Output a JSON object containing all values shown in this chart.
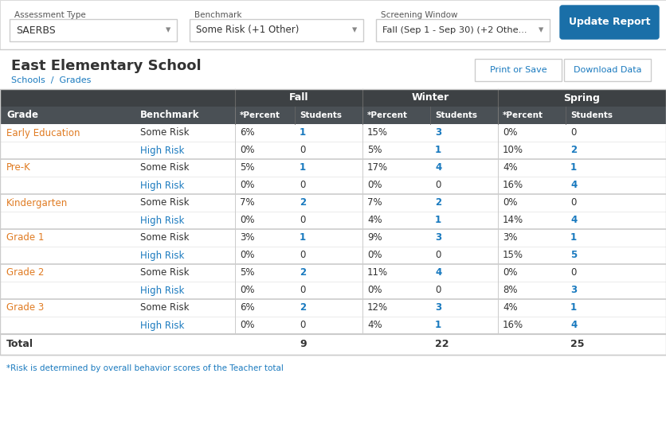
{
  "title": "East Elementary School",
  "breadcrumb": "Schools  /  Grades",
  "assessment_type_label": "Assessment Type",
  "assessment_type_value": "SAERBS",
  "benchmark_label": "Benchmark",
  "benchmark_value": "Some Risk (+1 Other)",
  "screening_window_label": "Screening Window",
  "screening_window_value": "Fall (Sep 1 - Sep 30) (+2 Othe...",
  "update_button": "Update Report",
  "print_button": "Print or Save",
  "download_button": "Download Data",
  "col_headers_top": [
    "",
    "",
    "Fall",
    "",
    "Winter",
    "",
    "Spring",
    ""
  ],
  "col_headers_sub": [
    "Grade",
    "Benchmark",
    "*Percent",
    "Students",
    "*Percent",
    "Students",
    "*Percent",
    "Students"
  ],
  "footnote": "*Risk is determined by overall behavior scores of the Teacher total",
  "rows": [
    {
      "grade": "Early Education",
      "benchmark": "Some Risk",
      "fall_pct": "6%",
      "fall_stu": "1",
      "fall_stu_blue": true,
      "win_pct": "15%",
      "win_stu": "3",
      "win_stu_blue": true,
      "spr_pct": "0%",
      "spr_stu": "0",
      "spr_stu_blue": false
    },
    {
      "grade": "",
      "benchmark": "High Risk",
      "fall_pct": "0%",
      "fall_stu": "0",
      "fall_stu_blue": false,
      "win_pct": "5%",
      "win_stu": "1",
      "win_stu_blue": true,
      "spr_pct": "10%",
      "spr_stu": "2",
      "spr_stu_blue": true
    },
    {
      "grade": "Pre-K",
      "benchmark": "Some Risk",
      "fall_pct": "5%",
      "fall_stu": "1",
      "fall_stu_blue": true,
      "win_pct": "17%",
      "win_stu": "4",
      "win_stu_blue": true,
      "spr_pct": "4%",
      "spr_stu": "1",
      "spr_stu_blue": true
    },
    {
      "grade": "",
      "benchmark": "High Risk",
      "fall_pct": "0%",
      "fall_stu": "0",
      "fall_stu_blue": false,
      "win_pct": "0%",
      "win_stu": "0",
      "win_stu_blue": false,
      "spr_pct": "16%",
      "spr_stu": "4",
      "spr_stu_blue": true
    },
    {
      "grade": "Kindergarten",
      "benchmark": "Some Risk",
      "fall_pct": "7%",
      "fall_stu": "2",
      "fall_stu_blue": true,
      "win_pct": "7%",
      "win_stu": "2",
      "win_stu_blue": true,
      "spr_pct": "0%",
      "spr_stu": "0",
      "spr_stu_blue": false
    },
    {
      "grade": "",
      "benchmark": "High Risk",
      "fall_pct": "0%",
      "fall_stu": "0",
      "fall_stu_blue": false,
      "win_pct": "4%",
      "win_stu": "1",
      "win_stu_blue": true,
      "spr_pct": "14%",
      "spr_stu": "4",
      "spr_stu_blue": true
    },
    {
      "grade": "Grade 1",
      "benchmark": "Some Risk",
      "fall_pct": "3%",
      "fall_stu": "1",
      "fall_stu_blue": true,
      "win_pct": "9%",
      "win_stu": "3",
      "win_stu_blue": true,
      "spr_pct": "3%",
      "spr_stu": "1",
      "spr_stu_blue": true
    },
    {
      "grade": "",
      "benchmark": "High Risk",
      "fall_pct": "0%",
      "fall_stu": "0",
      "fall_stu_blue": false,
      "win_pct": "0%",
      "win_stu": "0",
      "win_stu_blue": false,
      "spr_pct": "15%",
      "spr_stu": "5",
      "spr_stu_blue": true
    },
    {
      "grade": "Grade 2",
      "benchmark": "Some Risk",
      "fall_pct": "5%",
      "fall_stu": "2",
      "fall_stu_blue": true,
      "win_pct": "11%",
      "win_stu": "4",
      "win_stu_blue": true,
      "spr_pct": "0%",
      "spr_stu": "0",
      "spr_stu_blue": false
    },
    {
      "grade": "",
      "benchmark": "High Risk",
      "fall_pct": "0%",
      "fall_stu": "0",
      "fall_stu_blue": false,
      "win_pct": "0%",
      "win_stu": "0",
      "win_stu_blue": false,
      "spr_pct": "8%",
      "spr_stu": "3",
      "spr_stu_blue": true
    },
    {
      "grade": "Grade 3",
      "benchmark": "Some Risk",
      "fall_pct": "6%",
      "fall_stu": "2",
      "fall_stu_blue": true,
      "win_pct": "12%",
      "win_stu": "3",
      "win_stu_blue": true,
      "spr_pct": "4%",
      "spr_stu": "1",
      "spr_stu_blue": true
    },
    {
      "grade": "",
      "benchmark": "High Risk",
      "fall_pct": "0%",
      "fall_stu": "0",
      "fall_stu_blue": false,
      "win_pct": "4%",
      "win_stu": "1",
      "win_stu_blue": true,
      "spr_pct": "16%",
      "spr_stu": "4",
      "spr_stu_blue": true
    }
  ],
  "total_label": "Total",
  "total_fall": "9",
  "total_winter": "22",
  "total_spring": "25",
  "dark_header_color": "#3d4144",
  "medium_header_color": "#4a5055",
  "blue_link_color": "#1a7abf",
  "orange_grade_color": "#e07b22",
  "border_color": "#cccccc",
  "bg_white": "#ffffff",
  "bg_light": "#f5f5f5",
  "text_dark": "#333333",
  "text_medium": "#555555",
  "button_blue": "#1a6fa8",
  "footnote_color": "#1a7abf"
}
